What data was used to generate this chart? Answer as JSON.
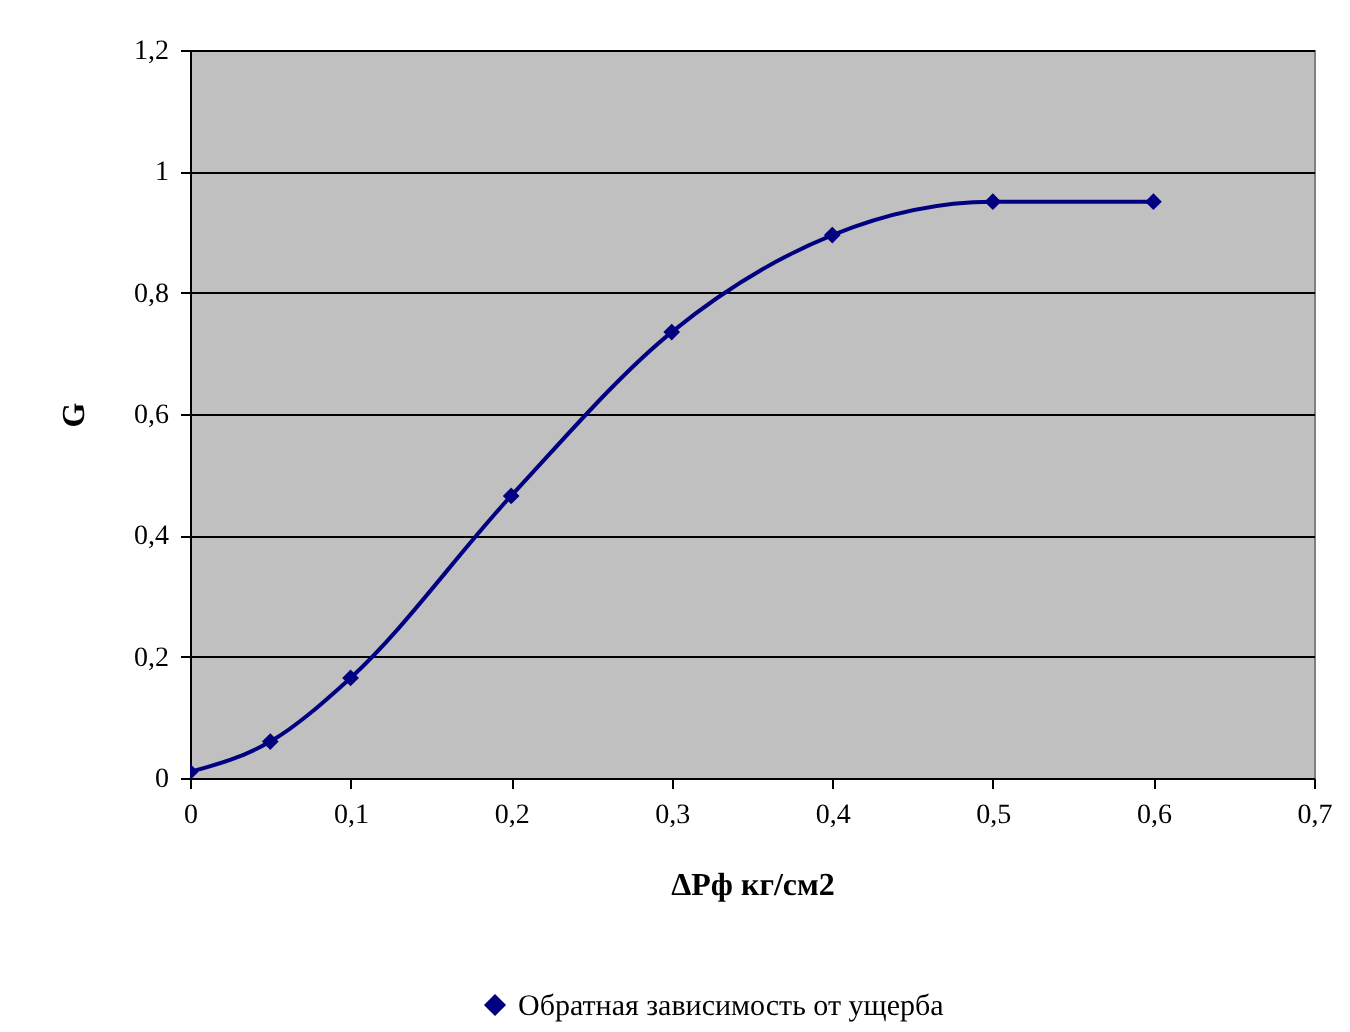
{
  "chart_data": {
    "type": "line",
    "xlabel": "ΔPф кг/см2",
    "ylabel": "G",
    "x": [
      0,
      0.05,
      0.1,
      0.2,
      0.3,
      0.4,
      0.5,
      0.6
    ],
    "series": [
      {
        "name": "Обратная зависимость от ущерба",
        "color": "#000080",
        "values": [
          0.01,
          0.06,
          0.165,
          0.465,
          0.735,
          0.895,
          0.95,
          0.95
        ]
      }
    ],
    "xlim": [
      0,
      0.7
    ],
    "ylim": [
      0,
      1.2
    ],
    "xticks": [
      0,
      {
        "value": 0.1,
        "label": "0,1"
      },
      {
        "value": 0.2,
        "label": "0,2"
      },
      {
        "value": 0.3,
        "label": "0,3"
      },
      {
        "value": 0.4,
        "label": "0,4"
      },
      {
        "value": 0.5,
        "label": "0,5"
      },
      {
        "value": 0.6,
        "label": "0,6"
      },
      {
        "value": 0.7,
        "label": "0,7"
      }
    ],
    "yticks": [
      0,
      {
        "value": 0.2,
        "label": "0,2"
      },
      {
        "value": 0.4,
        "label": "0,4"
      },
      {
        "value": 0.6,
        "label": "0,6"
      },
      {
        "value": 0.8,
        "label": "0,8"
      },
      1,
      {
        "value": 1.2,
        "label": "1,2"
      }
    ],
    "grid": "y",
    "legend": "bottom",
    "marker": "diamond",
    "line_style": "solid"
  }
}
